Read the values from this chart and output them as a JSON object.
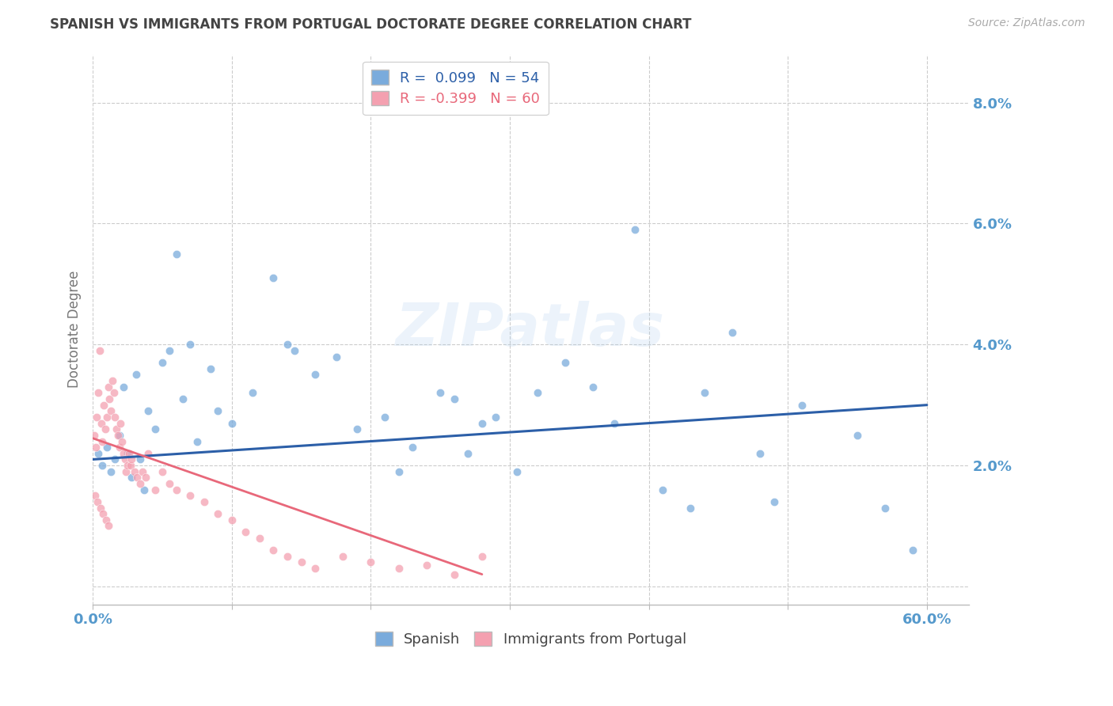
{
  "title": "SPANISH VS IMMIGRANTS FROM PORTUGAL DOCTORATE DEGREE CORRELATION CHART",
  "source": "Source: ZipAtlas.com",
  "ylabel": "Doctorate Degree",
  "ytick_values": [
    0.0,
    2.0,
    4.0,
    6.0,
    8.0
  ],
  "xlim": [
    0.0,
    63.0
  ],
  "ylim": [
    -0.3,
    8.8
  ],
  "plot_ylim_bottom": 0.0,
  "plot_ylim_top": 8.5,
  "watermark": "ZIPatlas",
  "legend_blue_label": "R =  0.099   N = 54",
  "legend_pink_label": "R = -0.399   N = 60",
  "blue_color": "#7aabdc",
  "pink_color": "#f4a0b0",
  "blue_line_color": "#2c5fa8",
  "pink_line_color": "#e8687a",
  "background_color": "#ffffff",
  "grid_color": "#cccccc",
  "axis_label_color": "#5599cc",
  "title_color": "#444444",
  "blue_scatter_x": [
    0.4,
    0.7,
    1.0,
    1.3,
    1.6,
    1.9,
    2.2,
    2.5,
    2.8,
    3.1,
    3.4,
    3.7,
    4.0,
    4.5,
    5.0,
    5.5,
    6.5,
    7.5,
    8.5,
    10.0,
    11.5,
    13.0,
    14.5,
    16.0,
    17.5,
    19.0,
    21.0,
    23.0,
    25.0,
    27.0,
    29.0,
    30.5,
    32.0,
    34.0,
    36.0,
    37.5,
    39.0,
    41.0,
    44.0,
    46.0,
    48.0,
    49.0,
    51.0,
    55.0,
    57.0,
    59.0
  ],
  "blue_scatter_y": [
    2.2,
    2.0,
    2.3,
    1.9,
    2.1,
    2.5,
    3.3,
    2.2,
    1.8,
    3.5,
    2.1,
    1.6,
    2.9,
    2.6,
    3.7,
    3.9,
    3.1,
    2.4,
    3.6,
    2.7,
    3.2,
    5.1,
    3.9,
    3.5,
    3.8,
    2.6,
    2.8,
    2.3,
    3.2,
    2.2,
    2.8,
    1.9,
    3.2,
    3.7,
    3.3,
    2.7,
    5.9,
    1.6,
    3.2,
    4.2,
    2.2,
    1.4,
    3.0,
    2.5,
    1.3,
    0.6
  ],
  "blue_scatter_x2": [
    6.0,
    7.0,
    9.0,
    14.0,
    22.0,
    26.0,
    28.0,
    43.0
  ],
  "blue_scatter_y2": [
    5.5,
    4.0,
    2.9,
    4.0,
    1.9,
    3.1,
    2.7,
    1.3
  ],
  "pink_scatter_x": [
    0.1,
    0.2,
    0.3,
    0.4,
    0.5,
    0.6,
    0.7,
    0.8,
    0.9,
    1.0,
    1.1,
    1.2,
    1.3,
    1.4,
    1.5,
    1.6,
    1.7,
    1.8,
    1.9,
    2.0,
    2.1,
    2.2,
    2.3,
    2.4,
    2.5,
    2.6,
    2.7,
    2.8,
    3.0,
    3.2,
    3.4,
    3.6,
    3.8,
    4.0,
    4.5,
    5.0,
    5.5,
    6.0,
    7.0,
    8.0,
    9.0,
    10.0,
    11.0,
    12.0,
    13.0,
    14.0,
    15.0,
    16.0,
    18.0,
    20.0,
    22.0,
    24.0,
    26.0,
    28.0,
    0.15,
    0.35,
    0.55,
    0.75,
    0.95,
    1.15
  ],
  "pink_scatter_y": [
    2.5,
    2.3,
    2.8,
    3.2,
    3.9,
    2.7,
    2.4,
    3.0,
    2.6,
    2.8,
    3.3,
    3.1,
    2.9,
    3.4,
    3.2,
    2.8,
    2.6,
    2.5,
    2.3,
    2.7,
    2.4,
    2.2,
    2.1,
    1.9,
    2.0,
    2.2,
    2.0,
    2.1,
    1.9,
    1.8,
    1.7,
    1.9,
    1.8,
    2.2,
    1.6,
    1.9,
    1.7,
    1.6,
    1.5,
    1.4,
    1.2,
    1.1,
    0.9,
    0.8,
    0.6,
    0.5,
    0.4,
    0.3,
    0.5,
    0.4,
    0.3,
    0.35,
    0.2,
    0.5,
    1.5,
    1.4,
    1.3,
    1.2,
    1.1,
    1.0
  ],
  "blue_trend_x": [
    0.0,
    60.0
  ],
  "blue_trend_y": [
    2.1,
    3.0
  ],
  "pink_trend_x": [
    0.0,
    28.0
  ],
  "pink_trend_y": [
    2.45,
    0.2
  ]
}
